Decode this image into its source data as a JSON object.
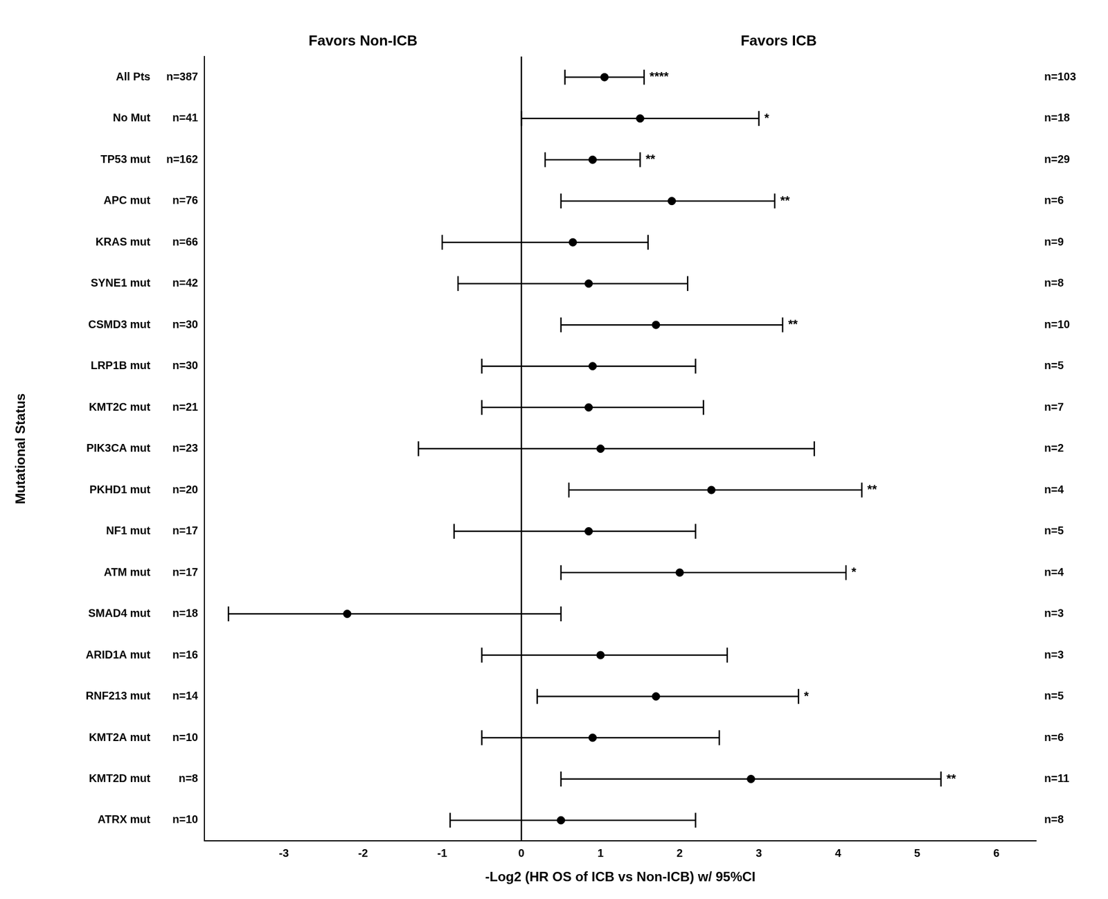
{
  "chart_data": {
    "type": "forest",
    "categories": [
      "All Pts",
      "No Mut",
      "TP53 mut",
      "APC mut",
      "KRAS mut",
      "SYNE1 mut",
      "CSMD3 mut",
      "LRP1B mut",
      "KMT2C mut",
      "PIK3CA mut",
      "PKHD1 mut",
      "NF1 mut",
      "ATM mut",
      "SMAD4 mut",
      "ARID1A mut",
      "RNF213 mut",
      "KMT2A mut",
      "KMT2D mut",
      "ATRX mut"
    ],
    "values": [
      1.05,
      1.5,
      0.9,
      1.9,
      0.65,
      0.85,
      1.7,
      0.9,
      0.85,
      1.0,
      2.4,
      0.85,
      2.0,
      -2.2,
      1.0,
      1.7,
      0.9,
      2.9,
      0.5
    ],
    "ci_low": [
      0.55,
      0.0,
      0.3,
      0.5,
      -1.0,
      -0.8,
      0.5,
      -0.5,
      -0.5,
      -1.3,
      0.6,
      -0.85,
      0.5,
      -3.7,
      -0.5,
      0.2,
      -0.5,
      0.5,
      -0.9
    ],
    "ci_high": [
      1.55,
      3.0,
      1.5,
      3.2,
      1.6,
      2.1,
      3.3,
      2.2,
      2.3,
      3.7,
      4.3,
      2.2,
      4.1,
      0.5,
      2.6,
      3.5,
      2.5,
      5.3,
      2.2
    ],
    "significance": [
      "****",
      "*",
      "**",
      "**",
      null,
      null,
      "**",
      null,
      null,
      null,
      "**",
      null,
      "*",
      null,
      null,
      "*",
      null,
      "**",
      null
    ],
    "n_left": [
      "n=387",
      "n=41",
      "n=162",
      "n=76",
      "n=66",
      "n=42",
      "n=30",
      "n=30",
      "n=21",
      "n=23",
      "n=20",
      "n=17",
      "n=17",
      "n=18",
      "n=16",
      "n=14",
      "n=10",
      "n=8",
      "n=10"
    ],
    "n_right": [
      "n=103",
      "n=18",
      "n=29",
      "n=6",
      "n=9",
      "n=8",
      "n=10",
      "n=5",
      "n=7",
      "n=2",
      "n=4",
      "n=5",
      "n=4",
      "n=3",
      "n=3",
      "n=5",
      "n=6",
      "n=11",
      "n=8"
    ],
    "xlabel": "-Log2 (HR OS of ICB vs Non-ICB) w/ 95%CI",
    "ylabel": "Mutational Status",
    "annotations": [
      "Favors Non-ICB",
      "Favors ICB"
    ],
    "xlim": [
      -4.0,
      6.5
    ],
    "xticks": [
      -3,
      -2,
      -1,
      0,
      1,
      2,
      3,
      4,
      5,
      6
    ],
    "color": "#000000",
    "grid": false
  }
}
